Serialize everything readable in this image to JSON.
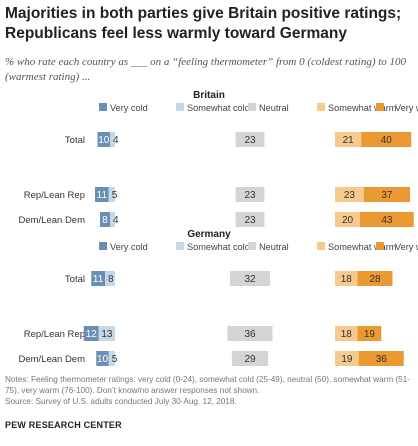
{
  "title": "Majorities in both parties give Britain positive ratings; Republicans feel less warmly toward Germany",
  "subtitle": "% who rate each country as ___ on a “feeling thermometer” from 0 (coldest rating) to 100 (warmest rating) ...",
  "notes": "Notes: Feeling thermometer ratings: very cold (0-24), somewhat cold (25-49), neutral (50), somewhat warm (51-75), very warm (76-100). Don’t know/no answer responses not shown.",
  "source": "Source: Survey of U.S. adults conducted July 30-Aug. 12, 2018.",
  "brand": "PEW RESEARCH CENTER",
  "colors": {
    "very_cold": "#6a8fb4",
    "somewhat_cold": "#c6d8e8",
    "neutral": "#d4d4d4",
    "somewhat_warm": "#f6c98d",
    "very_warm": "#eb9a33"
  },
  "chart_data": [
    {
      "type": "bar",
      "title": "Britain",
      "categories": [
        "Total",
        "Rep/Lean Rep",
        "Dem/Lean Dem"
      ],
      "series": [
        {
          "name": "Very cold",
          "values": [
            10,
            11,
            8
          ]
        },
        {
          "name": "Somewhat cold",
          "values": [
            4,
            5,
            4
          ]
        },
        {
          "name": "Neutral",
          "values": [
            23,
            23,
            23
          ]
        },
        {
          "name": "Somewhat warm",
          "values": [
            21,
            23,
            20
          ]
        },
        {
          "name": "Very warm",
          "values": [
            40,
            37,
            43
          ]
        }
      ]
    },
    {
      "type": "bar",
      "title": "Germany",
      "categories": [
        "Total",
        "Rep/Lean Rep",
        "Dem/Lean Dem"
      ],
      "series": [
        {
          "name": "Very cold",
          "values": [
            11,
            12,
            10
          ]
        },
        {
          "name": "Somewhat cold",
          "values": [
            8,
            13,
            5
          ]
        },
        {
          "name": "Neutral",
          "values": [
            32,
            36,
            29
          ]
        },
        {
          "name": "Somewhat warm",
          "values": [
            18,
            18,
            19
          ]
        },
        {
          "name": "Very warm",
          "values": [
            28,
            19,
            36
          ]
        }
      ]
    }
  ]
}
